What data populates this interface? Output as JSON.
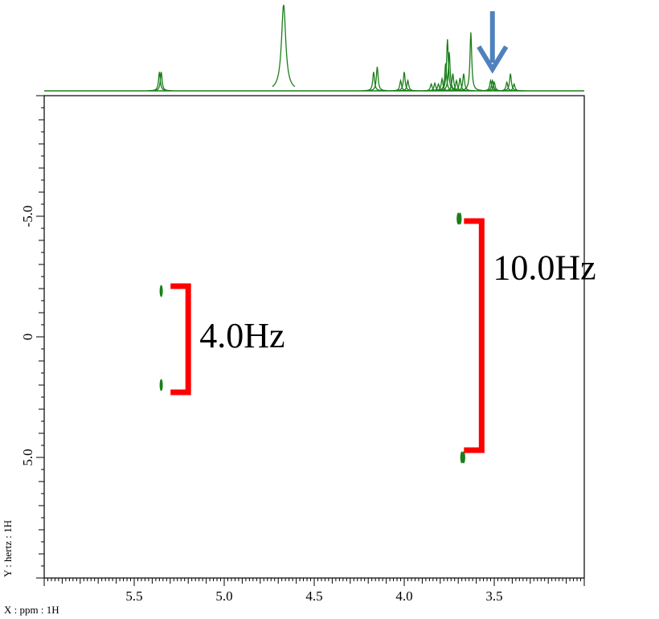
{
  "chart_data": {
    "type": "2D J-resolved NMR spectrum",
    "x_axis": {
      "label": "X : ppm : 1H",
      "range": [
        6.0,
        3.0
      ],
      "reversed": true,
      "ticks": [
        5.5,
        5.0,
        4.5,
        4.0,
        3.5
      ],
      "tick_labels": [
        "5.5",
        "5.0",
        "4.5",
        "4.0",
        "3.5"
      ]
    },
    "y_axis": {
      "label": "Y : hertz : 1H",
      "range": [
        -10,
        10
      ],
      "ticks": [
        -5.0,
        0,
        5.0
      ],
      "tick_labels": [
        "-5.0",
        "0",
        "5.0"
      ]
    },
    "projection_1d": {
      "color": "#1a7f1a",
      "peaks": [
        {
          "ppm": 5.36,
          "height": 0.22
        },
        {
          "ppm": 5.35,
          "height": 0.22
        },
        {
          "ppm": 4.67,
          "height": 1.0
        },
        {
          "ppm": 4.17,
          "height": 0.22
        },
        {
          "ppm": 4.15,
          "height": 0.28
        },
        {
          "ppm": 4.02,
          "height": 0.12
        },
        {
          "ppm": 4.0,
          "height": 0.22
        },
        {
          "ppm": 3.98,
          "height": 0.12
        },
        {
          "ppm": 3.85,
          "height": 0.08
        },
        {
          "ppm": 3.83,
          "height": 0.09
        },
        {
          "ppm": 3.81,
          "height": 0.08
        },
        {
          "ppm": 3.79,
          "height": 0.14
        },
        {
          "ppm": 3.77,
          "height": 0.32
        },
        {
          "ppm": 3.76,
          "height": 0.6
        },
        {
          "ppm": 3.75,
          "height": 0.45
        },
        {
          "ppm": 3.73,
          "height": 0.2
        },
        {
          "ppm": 3.71,
          "height": 0.12
        },
        {
          "ppm": 3.69,
          "height": 0.15
        },
        {
          "ppm": 3.67,
          "height": 0.2
        },
        {
          "ppm": 3.63,
          "height": 0.68
        },
        {
          "ppm": 3.52,
          "height": 0.12
        },
        {
          "ppm": 3.51,
          "height": 0.12
        },
        {
          "ppm": 3.5,
          "height": 0.1
        },
        {
          "ppm": 3.43,
          "height": 0.1
        },
        {
          "ppm": 3.41,
          "height": 0.2
        },
        {
          "ppm": 3.39,
          "height": 0.08
        }
      ]
    },
    "cross_peaks": [
      {
        "ppm": 5.35,
        "hz": -1.9
      },
      {
        "ppm": 5.35,
        "hz": 2.0
      },
      {
        "ppm": 3.7,
        "hz": -4.9
      },
      {
        "ppm": 3.69,
        "hz": -4.9
      },
      {
        "ppm": 3.68,
        "hz": 5.0
      },
      {
        "ppm": 3.67,
        "hz": 5.0
      }
    ],
    "annotations": [
      {
        "text": "4.0Hz",
        "ppm": 5.2,
        "hz_from": -2.1,
        "hz_to": 2.3,
        "color": "#ff0000"
      },
      {
        "text": "10.0Hz",
        "ppm": 3.57,
        "hz_from": -4.8,
        "hz_to": 4.7,
        "color": "#ff0000"
      }
    ],
    "arrow": {
      "ppm": 3.51,
      "color": "#4f81bd",
      "direction": "down"
    },
    "grid": false
  }
}
